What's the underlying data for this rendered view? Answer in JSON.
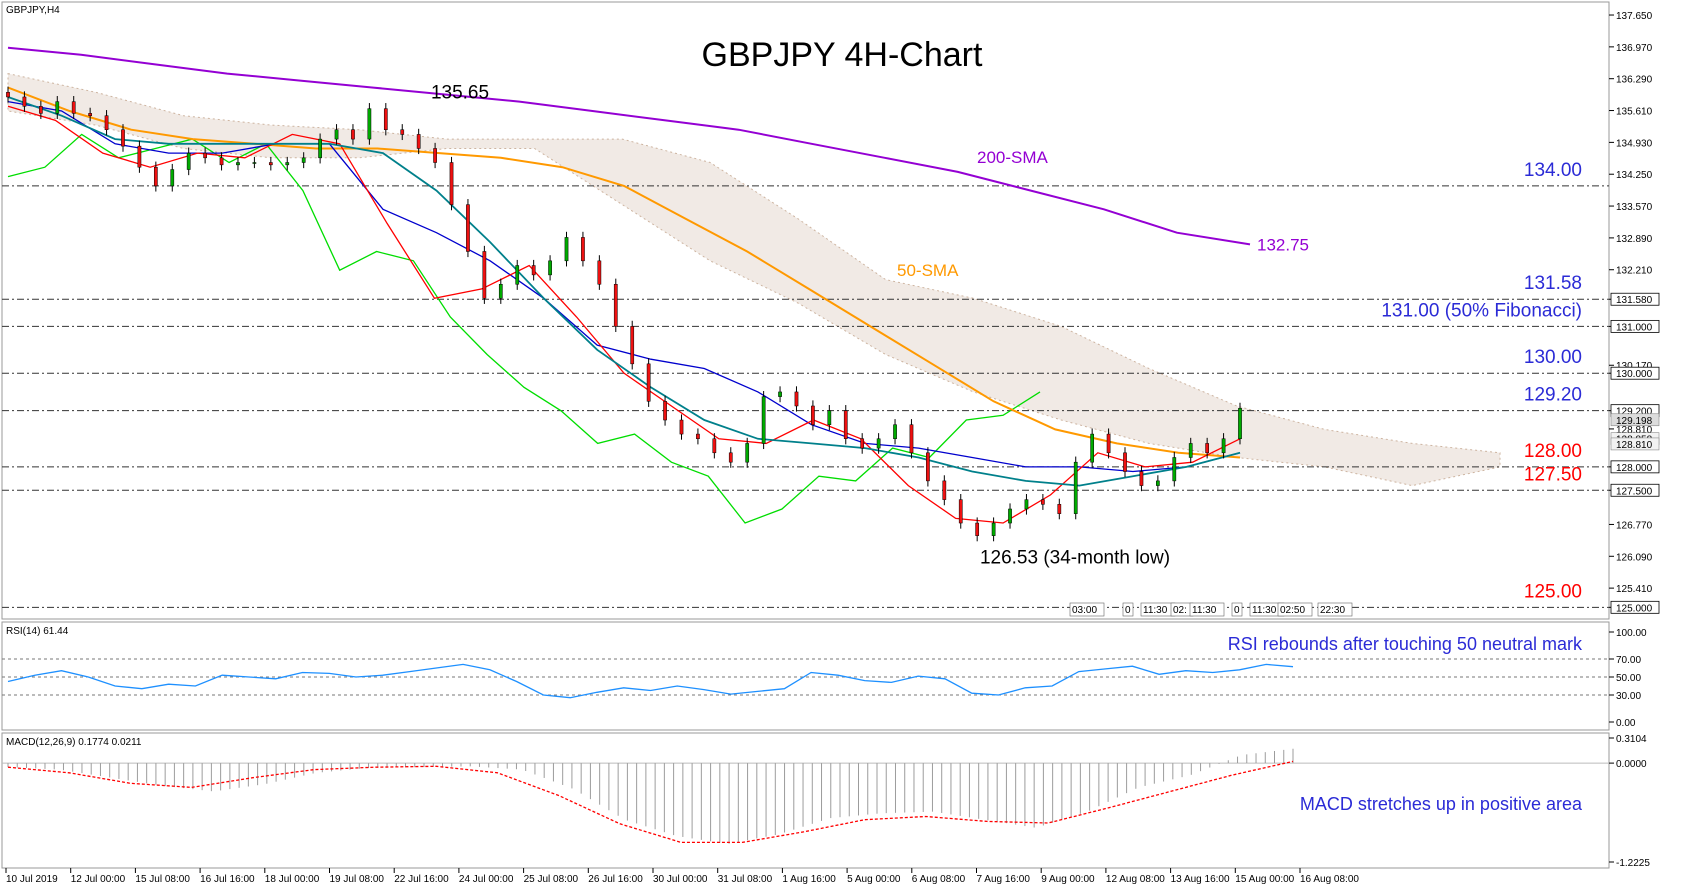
{
  "symbol_label": "GBPJPY,H4",
  "chart_data": [
    {
      "type": "candlestick",
      "title": "GBPJPY 4H-Chart",
      "y_axis_ticks": [
        "137.650",
        "136.970",
        "136.290",
        "135.610",
        "134.930",
        "134.250",
        "133.570",
        "132.890",
        "132.210",
        "131.580",
        "131.000",
        "130.170",
        "130.000",
        "129.200",
        "128.810",
        "128.000",
        "127.500",
        "126.770",
        "126.090",
        "125.410",
        "125.000"
      ],
      "ylim": [
        124.9,
        137.8
      ],
      "x_tick_labels": [
        "10 Jul 2019",
        "12 Jul 00:00",
        "15 Jul 08:00",
        "16 Jul 16:00",
        "18 Jul 00:00",
        "19 Jul 08:00",
        "22 Jul 16:00",
        "24 Jul 00:00",
        "25 Jul 08:00",
        "26 Jul 16:00",
        "30 Jul 00:00",
        "31 Jul 08:00",
        "1 Aug 16:00",
        "5 Aug 00:00",
        "6 Aug 08:00",
        "7 Aug 16:00",
        "9 Aug 00:00",
        "12 Aug 08:00",
        "13 Aug 16:00",
        "15 Aug 00:00",
        "16 Aug 08:00"
      ],
      "close_path": [
        135.9,
        135.7,
        135.55,
        135.8,
        135.55,
        135.5,
        135.2,
        134.85,
        134.4,
        134.0,
        134.35,
        134.7,
        134.6,
        134.45,
        134.5,
        134.5,
        134.45,
        134.5,
        134.6,
        135.0,
        135.2,
        135.0,
        135.65,
        135.2,
        135.1,
        134.8,
        134.5,
        133.6,
        132.6,
        131.6,
        131.9,
        132.3,
        132.1,
        132.4,
        132.9,
        132.4,
        131.9,
        131.0,
        130.2,
        129.4,
        129.0,
        128.7,
        128.6,
        128.3,
        128.1,
        128.5,
        129.5,
        129.6,
        129.3,
        128.9,
        129.2,
        128.6,
        128.4,
        128.6,
        128.9,
        128.3,
        127.7,
        127.3,
        126.8,
        126.53,
        126.8,
        127.1,
        127.3,
        127.2,
        127.0,
        128.1,
        128.7,
        128.3,
        127.9,
        127.6,
        127.7,
        128.2,
        128.5,
        128.3,
        128.6,
        129.25
      ],
      "indicator_lines": {
        "sma200": {
          "label": "200-SMA",
          "end_value_label": "132.75",
          "color": "#9400d3",
          "values": [
            136.95,
            136.8,
            136.6,
            136.4,
            136.25,
            136.1,
            135.95,
            135.8,
            135.6,
            135.4,
            135.2,
            134.9,
            134.6,
            134.3,
            133.9,
            133.5,
            133.0,
            132.75
          ]
        },
        "sma50": {
          "label": "50-SMA",
          "color": "#ff9900",
          "values": [
            136.1,
            135.6,
            135.2,
            135.0,
            134.9,
            134.8,
            134.8,
            134.7,
            134.6,
            134.4,
            134.0,
            133.3,
            132.6,
            131.8,
            131.0,
            130.2,
            129.4,
            128.8,
            128.5,
            128.3,
            128.2
          ]
        },
        "tenkan": {
          "color": "#ff0000",
          "values": [
            135.7,
            135.4,
            134.7,
            134.4,
            134.7,
            134.6,
            135.1,
            134.9,
            133.2,
            131.6,
            131.8,
            132.3,
            131.2,
            130.0,
            129.3,
            128.6,
            128.5,
            129.0,
            128.6,
            127.6,
            126.9,
            126.8,
            127.4,
            128.3,
            128.0,
            128.1,
            128.6
          ]
        },
        "kijun": {
          "color": "#0000cd",
          "values": [
            135.8,
            135.6,
            134.9,
            134.7,
            134.7,
            134.9,
            134.9,
            133.5,
            133.0,
            132.4,
            131.6,
            130.6,
            130.3,
            130.1,
            129.6,
            128.9,
            128.5,
            128.4,
            128.2,
            128.0,
            128.0,
            127.9,
            128.0,
            128.3
          ]
        },
        "lagging_span": {
          "color": "#00dd00",
          "values": [
            134.2,
            134.4,
            135.1,
            134.6,
            134.8,
            135.0,
            134.5,
            134.9,
            133.9,
            132.2,
            132.6,
            132.4,
            131.2,
            130.4,
            129.7,
            129.2,
            128.5,
            128.7,
            128.1,
            127.8,
            126.8,
            127.1,
            127.8,
            127.7,
            128.4,
            128.2,
            129.0,
            129.1,
            129.6
          ]
        },
        "sma_teal": {
          "color": "#00808b",
          "values": [
            135.9,
            135.5,
            135.0,
            134.9,
            134.9,
            134.9,
            134.9,
            134.7,
            133.9,
            132.8,
            131.6,
            130.5,
            129.7,
            129.0,
            128.6,
            128.5,
            128.4,
            128.2,
            127.9,
            127.7,
            127.6,
            127.8,
            128.0,
            128.3
          ]
        }
      },
      "ichimoku_cloud": {
        "color": "#cdb4a0",
        "upper": [
          136.4,
          136.0,
          135.5,
          135.3,
          135.2,
          135.0,
          135.0,
          135.0,
          134.5,
          133.3,
          132.0,
          131.6,
          131.0,
          130.1,
          129.3,
          128.8,
          128.5,
          128.3
        ],
        "lower": [
          135.6,
          135.3,
          134.8,
          134.6,
          134.6,
          134.8,
          134.8,
          133.6,
          132.4,
          131.5,
          130.4,
          129.6,
          129.0,
          128.5,
          128.2,
          128.0,
          127.6,
          128.0
        ]
      },
      "horizontal_levels": [
        {
          "value": 134.0,
          "label": "134.00",
          "color": "#2b2bd6"
        },
        {
          "value": 131.58,
          "label": "131.58",
          "color": "#2b2bd6"
        },
        {
          "value": 131.0,
          "label": "131.00 (50% Fibonacci)",
          "color": "#2b2bd6"
        },
        {
          "value": 130.0,
          "label": "130.00",
          "color": "#2b2bd6"
        },
        {
          "value": 129.2,
          "label": "129.20",
          "color": "#2b2bd6"
        },
        {
          "value": 128.0,
          "label": "128.00",
          "color": "#ff0000"
        },
        {
          "value": 127.5,
          "label": "127.50",
          "color": "#ff0000"
        },
        {
          "value": 125.0,
          "label": "125.00",
          "color": "#ff0000"
        }
      ],
      "highlighted_prices": [
        "134.000",
        "131.580",
        "131.000",
        "130.000",
        "129.200",
        "128.000",
        "127.500",
        "125.000"
      ],
      "current_price_tags": [
        "129.198",
        "128.858",
        "128.810"
      ],
      "annotations": [
        {
          "text": "135.65",
          "value": 135.65
        },
        {
          "text": "126.53 (34-month low)",
          "value": 126.53
        },
        {
          "text": "200-SMA"
        },
        {
          "text": "50-SMA"
        },
        {
          "text": "132.75"
        }
      ],
      "time_markers": [
        "03:00",
        "0",
        "11:30",
        "02:",
        "11:30",
        "0",
        "11:30",
        "02:50",
        "22:30"
      ]
    },
    {
      "type": "line",
      "title": "RSI(14) 61.44",
      "ylim": [
        0,
        100
      ],
      "y_axis_ticks": [
        "100.00",
        "70.00",
        "50.00",
        "30.00",
        "0.00"
      ],
      "levels": [
        70,
        50,
        30
      ],
      "annotation": "RSI rebounds after touching 50 neutral mark",
      "series": [
        {
          "color": "#1e90ff",
          "values": [
            45,
            52,
            57,
            50,
            40,
            37,
            42,
            40,
            52,
            50,
            48,
            55,
            54,
            50,
            52,
            56,
            60,
            64,
            58,
            45,
            30,
            27,
            33,
            38,
            35,
            40,
            36,
            31,
            34,
            37,
            55,
            52,
            46,
            44,
            51,
            48,
            32,
            30,
            38,
            40,
            56,
            59,
            62,
            53,
            57,
            55,
            58,
            64,
            61.44
          ]
        }
      ]
    },
    {
      "type": "bar+line",
      "title": "MACD(12,26,9) 0.1774 0.0211",
      "ylim": [
        -1.2225,
        0.3104
      ],
      "y_axis_ticks": [
        "0.3104",
        "0.0000",
        "-1.2225"
      ],
      "annotation": "MACD stretches up in positive area",
      "histogram": [
        -0.05,
        -0.08,
        -0.18,
        -0.28,
        -0.35,
        -0.26,
        -0.12,
        -0.06,
        -0.05,
        -0.04,
        -0.08,
        -0.32,
        -0.7,
        -0.9,
        -1.0,
        -0.88,
        -0.68,
        -0.62,
        -0.6,
        -0.7,
        -0.8,
        -0.6,
        -0.3,
        -0.15,
        0.1,
        0.1774
      ],
      "signal": [
        -0.05,
        -0.12,
        -0.25,
        -0.3,
        -0.18,
        -0.08,
        -0.05,
        -0.04,
        -0.12,
        -0.4,
        -0.75,
        -0.98,
        -0.98,
        -0.85,
        -0.7,
        -0.66,
        -0.72,
        -0.74,
        -0.55,
        -0.35,
        -0.15,
        0.0211
      ]
    }
  ]
}
